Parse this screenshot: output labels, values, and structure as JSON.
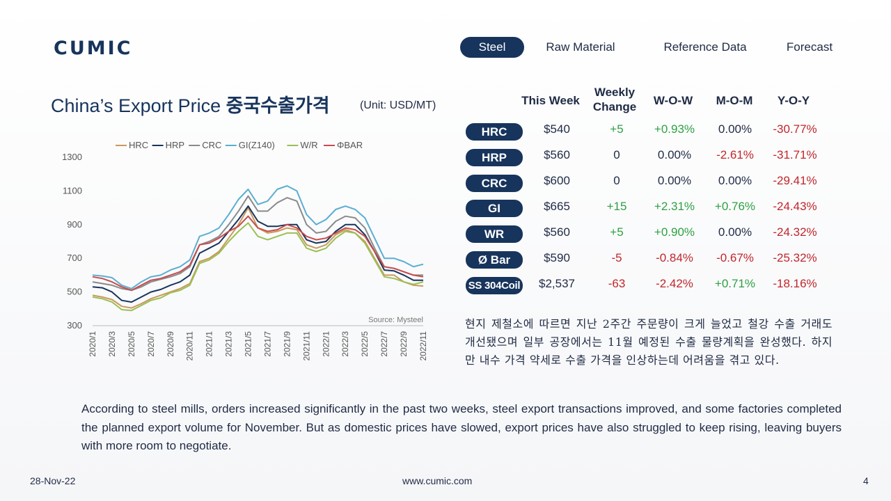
{
  "brand": {
    "logo_text": "CUMIC"
  },
  "nav": {
    "tabs": [
      {
        "label": "Steel",
        "active": true
      },
      {
        "label": "Raw Material",
        "active": false
      },
      {
        "label": "Reference Data",
        "active": false
      },
      {
        "label": "Forecast",
        "active": false
      }
    ]
  },
  "page": {
    "title_en": "China’s Export Price ",
    "title_ko": "중국수출가격",
    "unit": "(Unit: USD/MT)"
  },
  "table": {
    "headers": [
      "This Week",
      "Weekly Change",
      "W-O-W",
      "M-O-M",
      "Y-O-Y"
    ],
    "rows": [
      {
        "label": "HRC",
        "price": "$540",
        "change": "+5",
        "wow": "+0.93%",
        "mom": "0.00%",
        "yoy": "-30.77%"
      },
      {
        "label": "HRP",
        "price": "$560",
        "change": "0",
        "wow": "0.00%",
        "mom": "-2.61%",
        "yoy": "-31.71%"
      },
      {
        "label": "CRC",
        "price": "$600",
        "change": "0",
        "wow": "0.00%",
        "mom": "0.00%",
        "yoy": "-29.41%"
      },
      {
        "label": "GI",
        "price": "$665",
        "change": "+15",
        "wow": "+2.31%",
        "mom": "+0.76%",
        "yoy": "-24.43%"
      },
      {
        "label": "WR",
        "price": "$560",
        "change": "+5",
        "wow": "+0.90%",
        "mom": "0.00%",
        "yoy": "-24.32%"
      },
      {
        "label": "Ø Bar",
        "price": "$590",
        "change": "-5",
        "wow": "-0.84%",
        "mom": "-0.67%",
        "yoy": "-25.32%"
      },
      {
        "label": "SS 304Coil",
        "price": "$2,537",
        "change": "-63",
        "wow": "-2.42%",
        "mom": "+0.71%",
        "yoy": "-18.16%"
      }
    ]
  },
  "text": {
    "korean": "현지 제철소에 따르면 지난 2주간 주문량이 크게 늘었고 철강 수출 거래도 개선됐으며 일부 공장에서는 11월 예정된 수출 물량계획을 완성했다. 하지만 내수 가격 약세로 수출 가격을 인상하는데 어려움을 겪고 있다.",
    "english": "According to steel mills, orders increased significantly in the past two weeks, steel export transactions improved, and some factories completed the planned export volume for November. But as domestic prices have slowed, export prices have also struggled to keep rising, leaving buyers with more room to negotiate."
  },
  "footer": {
    "date": "28-Nov-22",
    "website": "www.cumic.com",
    "page_number": "4"
  },
  "colors": {
    "brand_navy": "#17345c",
    "positive": "#2ea043",
    "negative": "#c0262b"
  },
  "chart_data": {
    "type": "line",
    "title": "",
    "xlabel": "",
    "ylabel": "",
    "ylim": [
      300,
      1300
    ],
    "yticks": [
      "300",
      "500",
      "700",
      "900",
      "1100",
      "1300"
    ],
    "xticks": [
      "2020/1",
      "2020/3",
      "2020/5",
      "2020/7",
      "2020/9",
      "2020/11",
      "2021/1",
      "2021/3",
      "2021/5",
      "2021/7",
      "2021/9",
      "2021/11",
      "2022/1",
      "2022/3",
      "2022/5",
      "2022/7",
      "2022/9",
      "2022/11"
    ],
    "source": "Source: Mysteel",
    "legend_position": "top",
    "x": [
      "2020/1",
      "2020/2",
      "2020/3",
      "2020/4",
      "2020/5",
      "2020/6",
      "2020/7",
      "2020/8",
      "2020/9",
      "2020/10",
      "2020/11",
      "2020/12",
      "2021/1",
      "2021/2",
      "2021/3",
      "2021/4",
      "2021/5",
      "2021/6",
      "2021/7",
      "2021/8",
      "2021/9",
      "2021/10",
      "2021/11",
      "2021/12",
      "2022/1",
      "2022/2",
      "2022/3",
      "2022/4",
      "2022/5",
      "2022/6",
      "2022/7",
      "2022/8",
      "2022/9",
      "2022/10",
      "2022/11"
    ],
    "series": [
      {
        "name": "HRC",
        "color": "#c99a5b",
        "values": [
          480,
          470,
          455,
          415,
          405,
          430,
          460,
          480,
          500,
          520,
          550,
          680,
          700,
          740,
          820,
          900,
          1000,
          880,
          850,
          860,
          880,
          870,
          780,
          760,
          780,
          840,
          870,
          850,
          800,
          700,
          600,
          600,
          560,
          540,
          535
        ]
      },
      {
        "name": "HRP",
        "color": "#17345c",
        "values": [
          530,
          525,
          500,
          450,
          440,
          470,
          500,
          515,
          540,
          560,
          600,
          730,
          760,
          790,
          860,
          930,
          1010,
          920,
          890,
          890,
          900,
          900,
          810,
          790,
          800,
          860,
          900,
          900,
          840,
          740,
          630,
          625,
          600,
          570,
          570
        ]
      },
      {
        "name": "CRC",
        "color": "#8a8a8a",
        "values": [
          560,
          550,
          540,
          520,
          510,
          530,
          560,
          575,
          590,
          610,
          650,
          780,
          800,
          830,
          900,
          980,
          1070,
          980,
          980,
          1030,
          1060,
          1040,
          900,
          850,
          860,
          920,
          950,
          940,
          880,
          760,
          650,
          640,
          620,
          600,
          600
        ]
      },
      {
        "name": "GI(Z140)",
        "color": "#5aaed1",
        "values": [
          600,
          595,
          585,
          540,
          520,
          560,
          590,
          600,
          630,
          650,
          690,
          830,
          850,
          880,
          960,
          1050,
          1110,
          1020,
          1040,
          1110,
          1130,
          1100,
          960,
          900,
          930,
          990,
          1010,
          990,
          940,
          820,
          700,
          700,
          680,
          650,
          665
        ]
      },
      {
        "name": "W/R",
        "color": "#9bbf55",
        "values": [
          470,
          460,
          440,
          395,
          390,
          420,
          450,
          465,
          495,
          510,
          540,
          670,
          690,
          730,
          800,
          860,
          910,
          830,
          810,
          830,
          850,
          850,
          760,
          740,
          760,
          820,
          860,
          850,
          790,
          690,
          590,
          580,
          560,
          545,
          560
        ]
      },
      {
        "name": "ΦBAR",
        "color": "#c94c4c",
        "values": [
          590,
          580,
          560,
          530,
          510,
          540,
          570,
          580,
          600,
          620,
          660,
          780,
          790,
          820,
          860,
          890,
          950,
          880,
          860,
          870,
          900,
          880,
          830,
          810,
          820,
          850,
          880,
          870,
          830,
          740,
          650,
          640,
          620,
          600,
          590
        ]
      }
    ]
  }
}
